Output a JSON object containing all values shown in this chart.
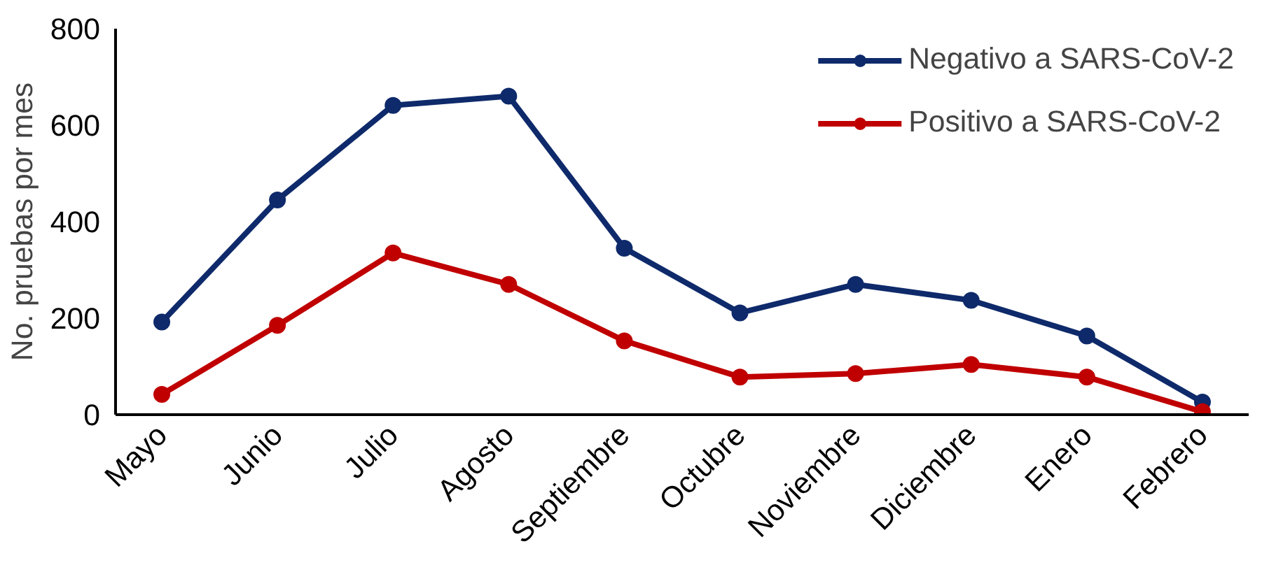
{
  "chart_data": {
    "type": "line",
    "ylabel": "No. pruebas por mes",
    "categories": [
      "Mayo",
      "Junio",
      "Julio",
      "Agosto",
      "Septiembre",
      "Octubre",
      "Noviembre",
      "Diciembre",
      "Enero",
      "Febrero"
    ],
    "series": [
      {
        "name": "Negativo a SARS-CoV-2",
        "color": "#0e2a6b",
        "values": [
          192,
          445,
          641,
          660,
          345,
          211,
          270,
          237,
          163,
          26
        ]
      },
      {
        "name": "Positivo a SARS-CoV-2",
        "color": "#c00000",
        "values": [
          42,
          185,
          335,
          270,
          153,
          78,
          85,
          104,
          78,
          6
        ]
      }
    ],
    "ylim": [
      0,
      800
    ],
    "yticks": [
      0,
      200,
      400,
      600,
      800
    ],
    "grid": false,
    "legend": "top right",
    "marker": "circle",
    "line_style": "solid"
  }
}
